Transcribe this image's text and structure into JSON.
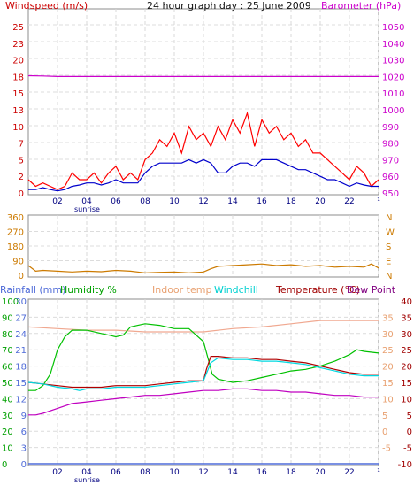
{
  "chart_data": [
    {
      "type": "line",
      "title": "24 hour graph day : 25 June 2009",
      "left_axis_label": "Windspeed (m/s)",
      "right_axis_label": "Barometer (hPa)",
      "x_ticks": [
        "02",
        "04",
        "06",
        "08",
        "10",
        "12",
        "14",
        "16",
        "18",
        "20",
        "22",
        "¹"
      ],
      "x_annotation": "sunrise",
      "left_ticks": [
        "0",
        "2",
        "5",
        "7",
        "10",
        "13",
        "15",
        "18",
        "20",
        "23",
        "25"
      ],
      "right_ticks": [
        "950",
        "960",
        "970",
        "980",
        "990",
        "1000",
        "1010",
        "1020",
        "1030",
        "1040",
        "1050"
      ],
      "ylim_left": [
        0,
        25
      ],
      "ylim_right": [
        950,
        1050
      ],
      "x_range_hours": [
        0,
        24
      ],
      "grid": true,
      "colors": {
        "gust": "#ff0000",
        "average": "#0000cc",
        "barometer": "#cc00cc"
      },
      "series": [
        {
          "key": "gust",
          "x": [
            0,
            0.5,
            1,
            1.5,
            2,
            2.5,
            3,
            3.5,
            4,
            4.5,
            5,
            5.5,
            6,
            6.5,
            7,
            7.5,
            8,
            8.5,
            9,
            9.5,
            10,
            10.5,
            11,
            11.5,
            12,
            12.5,
            13,
            13.5,
            14,
            14.5,
            15,
            15.5,
            16,
            16.5,
            17,
            17.5,
            18,
            18.5,
            19,
            19.5,
            20,
            20.5,
            21,
            21.5,
            22,
            22.5,
            23,
            23.5,
            24
          ],
          "values": [
            2,
            1,
            1.5,
            1,
            0.5,
            1,
            3,
            2,
            2,
            3,
            1.5,
            3,
            4,
            2,
            3,
            2,
            5,
            6,
            8,
            7,
            9,
            6,
            10,
            8,
            9,
            7,
            10,
            8,
            11,
            9,
            12,
            7,
            11,
            9,
            10,
            8,
            9,
            7,
            8,
            6,
            6,
            5,
            4,
            3,
            2,
            4,
            3,
            1,
            2
          ]
        },
        {
          "key": "average",
          "x": [
            0,
            0.5,
            1,
            1.5,
            2,
            2.5,
            3,
            3.5,
            4,
            4.5,
            5,
            5.5,
            6,
            6.5,
            7,
            7.5,
            8,
            8.5,
            9,
            9.5,
            10,
            10.5,
            11,
            11.5,
            12,
            12.5,
            13,
            13.5,
            14,
            14.5,
            15,
            15.5,
            16,
            16.5,
            17,
            17.5,
            18,
            18.5,
            19,
            19.5,
            20,
            20.5,
            21,
            21.5,
            22,
            22.5,
            23,
            23.5,
            24
          ],
          "values": [
            0.5,
            0.5,
            0.8,
            0.5,
            0.3,
            0.5,
            1,
            1.2,
            1.5,
            1.5,
            1.2,
            1.5,
            2,
            1.5,
            1.5,
            1.5,
            3,
            4,
            4.5,
            4.5,
            4.5,
            4.5,
            5,
            4.5,
            5,
            4.5,
            3,
            3,
            4,
            4.5,
            4.5,
            4,
            5,
            5,
            5,
            4.5,
            4,
            3.5,
            3.5,
            3,
            2.5,
            2,
            2,
            1.5,
            1,
            1.5,
            1.2,
            1,
            1
          ]
        },
        {
          "key": "barometer",
          "axis": "right",
          "x": [
            0,
            1,
            2,
            4,
            6,
            8,
            10,
            12,
            14,
            16,
            18,
            20,
            22,
            24
          ],
          "values": [
            1020.5,
            1020.3,
            1020,
            1020,
            1020,
            1020,
            1020,
            1020,
            1020,
            1020,
            1020,
            1020,
            1020,
            1020
          ]
        }
      ]
    },
    {
      "type": "line",
      "right_axis_label": "N W S E N",
      "right_labels": [
        "N",
        "W",
        "S",
        "E",
        "N"
      ],
      "left_ticks": [
        "0",
        "90",
        "180",
        "270",
        "360"
      ],
      "x_range_hours": [
        0,
        24
      ],
      "ylim": [
        0,
        360
      ],
      "grid": true,
      "colors": {
        "direction": "#cc7a00"
      },
      "series": [
        {
          "key": "direction",
          "x": [
            0,
            0.5,
            1,
            2,
            3,
            4,
            5,
            6,
            7,
            8,
            9,
            10,
            11,
            12,
            12.5,
            13,
            14,
            15,
            16,
            17,
            18,
            19,
            20,
            21,
            22,
            23,
            23.5,
            24
          ],
          "values": [
            60,
            25,
            30,
            25,
            20,
            25,
            22,
            30,
            25,
            15,
            18,
            20,
            15,
            20,
            40,
            55,
            60,
            65,
            70,
            60,
            65,
            55,
            60,
            50,
            55,
            50,
            70,
            45
          ]
        }
      ]
    },
    {
      "type": "line",
      "legend": [
        "Rainfall (mm)",
        "Humidity %",
        "Indoor temp",
        "Windchill",
        "Temperature (°C)",
        "Dew Point"
      ],
      "legend_colors": [
        "#4f6bd8",
        "#00a000",
        "#e8a070",
        "#00d0d0",
        "#a00000",
        "#800080"
      ],
      "rain_ticks": [
        "0",
        "3",
        "6",
        "9",
        "12",
        "15",
        "18",
        "21",
        "24",
        "27",
        "30"
      ],
      "humidity_ticks": [
        "0",
        "10",
        "20",
        "30",
        "40",
        "50",
        "60",
        "70",
        "80",
        "90",
        "100"
      ],
      "temp_ticks_inner": [
        "-5",
        "0",
        "5",
        "10",
        "15",
        "20",
        "25",
        "30",
        "35"
      ],
      "temp_ticks_outer": [
        "-10",
        "-5",
        "0",
        "5",
        "10",
        "15",
        "20",
        "25",
        "30",
        "35",
        "40"
      ],
      "x_ticks": [
        "02",
        "04",
        "06",
        "08",
        "10",
        "12",
        "14",
        "16",
        "18",
        "20",
        "22",
        "¹"
      ],
      "x_annotation": "sunrise",
      "x_range_hours": [
        0,
        24
      ],
      "ylim_humidity": [
        0,
        100
      ],
      "ylim_temp": [
        -10,
        40
      ],
      "grid": true,
      "series": [
        {
          "key": "indoor",
          "axis": "temp",
          "x": [
            0,
            2,
            4,
            6,
            8,
            10,
            12,
            14,
            16,
            18,
            20,
            22,
            24
          ],
          "values": [
            32,
            31.5,
            31,
            31,
            30.5,
            30.5,
            30.5,
            31.5,
            32,
            33,
            34,
            34,
            34
          ]
        },
        {
          "key": "humidity",
          "axis": "humidity",
          "x": [
            0,
            0.5,
            1,
            1.5,
            2,
            2.5,
            3,
            4,
            5,
            5.5,
            6,
            6.5,
            7,
            7.5,
            8,
            9,
            10,
            11,
            12,
            12.3,
            12.6,
            13,
            14,
            15,
            16,
            17,
            18,
            19,
            20,
            21,
            22,
            22.5,
            23,
            24
          ],
          "values": [
            45,
            45,
            48,
            55,
            70,
            78,
            82,
            82,
            80,
            79,
            78,
            79,
            84,
            85,
            86,
            85,
            83,
            83,
            75,
            65,
            55,
            52,
            50,
            51,
            53,
            55,
            57,
            58,
            60,
            63,
            67,
            70,
            69,
            68
          ]
        },
        {
          "key": "temperature",
          "axis": "temp",
          "x": [
            0,
            1,
            2,
            3,
            4,
            5,
            6,
            7,
            8,
            9,
            10,
            11,
            12,
            12.2,
            12.5,
            13,
            14,
            15,
            16,
            17,
            18,
            19,
            20,
            21,
            22,
            23,
            24
          ],
          "values": [
            15,
            14.5,
            14,
            13.5,
            13.5,
            13.5,
            14,
            14,
            14,
            14.5,
            15,
            15.5,
            15.5,
            19,
            23,
            23,
            22.5,
            22.5,
            22,
            22,
            21.5,
            21,
            20,
            19,
            18,
            17.5,
            17.5
          ]
        },
        {
          "key": "windchill",
          "axis": "temp",
          "x": [
            0,
            1,
            2,
            3,
            3.5,
            4,
            5,
            6,
            7,
            8,
            9,
            10,
            11,
            12,
            12.5,
            13,
            14,
            15,
            16,
            17,
            18,
            19,
            20,
            21,
            22,
            23,
            24
          ],
          "values": [
            15,
            14.5,
            13.5,
            13,
            12.5,
            13,
            13,
            13.5,
            13.5,
            13.5,
            14,
            14.5,
            15,
            15.5,
            21,
            22.5,
            22,
            22,
            21.5,
            21.5,
            21,
            20.5,
            19.5,
            18.5,
            17.5,
            17,
            17
          ]
        },
        {
          "key": "dewpoint",
          "axis": "temp",
          "x": [
            0,
            0.5,
            1,
            2,
            3,
            4,
            5,
            6,
            7,
            8,
            9,
            10,
            11,
            12,
            13,
            14,
            15,
            16,
            17,
            18,
            19,
            20,
            21,
            22,
            23,
            24
          ],
          "values": [
            5,
            5,
            5.5,
            7,
            8.5,
            9,
            9.5,
            10,
            10.5,
            11,
            11,
            11.5,
            12,
            12.5,
            12.5,
            13,
            13,
            12.5,
            12.5,
            12,
            12,
            11.5,
            11,
            11,
            10.5,
            10.5
          ]
        }
      ]
    }
  ]
}
